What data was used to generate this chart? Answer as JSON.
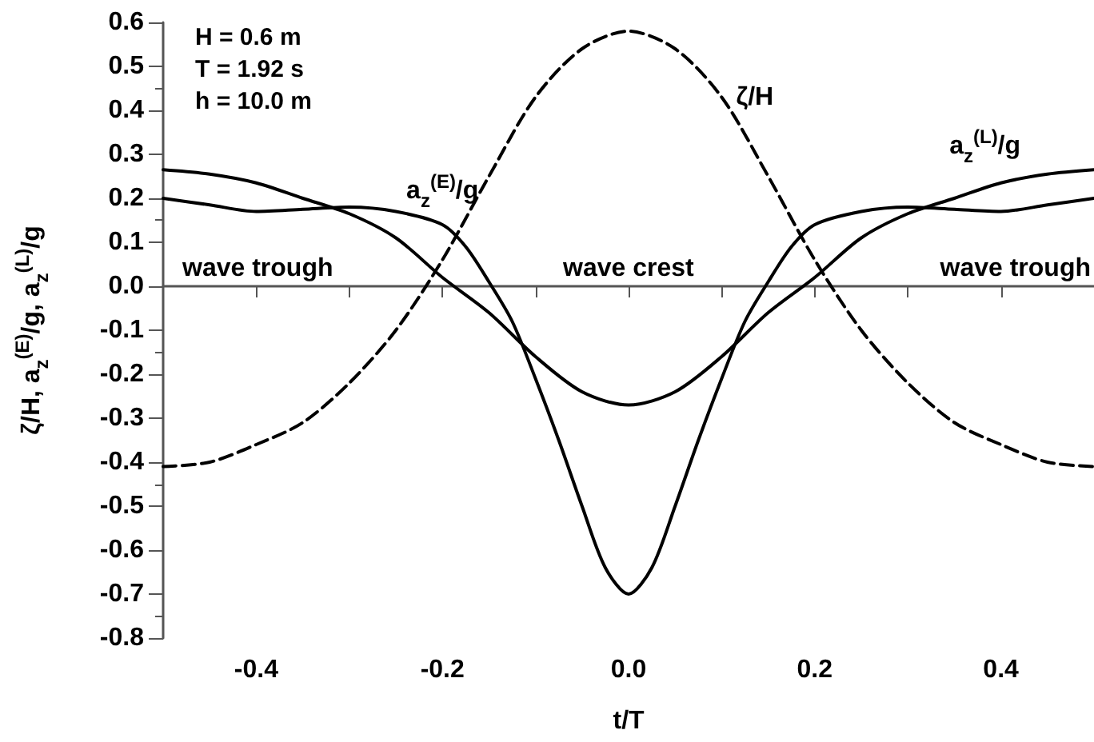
{
  "chart_data": {
    "type": "line",
    "xlabel": "t/T",
    "ylabel": "ζ/H, a$_{z}$$^{(E)}$/g, a$_{z}$$^{(L)}$/g",
    "xlim": [
      -0.5,
      0.5
    ],
    "xticks": [
      -0.4,
      {
        "value": -0.3,
        "label": null
      },
      -0.2,
      {
        "value": -0.1,
        "label": null
      },
      {
        "value": 0,
        "label": "0.0"
      },
      {
        "value": 0.1,
        "label": null
      },
      0.2,
      {
        "value": 0.3,
        "label": null
      },
      0.4
    ],
    "ylim": [
      -0.8,
      0.6
    ],
    "yticks": [
      -0.8,
      -0.7,
      -0.6,
      -0.5,
      -0.4,
      -0.3,
      -0.2,
      -0.1,
      {
        "value": 0,
        "label": "0.0"
      },
      0.1,
      0.2,
      0.3,
      0.4,
      0.5,
      0.6
    ],
    "marker": "none",
    "annotations": [
      "H = 0.6 m",
      "T = 1.92 s",
      "h = 10.0 m",
      "wave trough",
      "wave crest",
      "wave trough"
    ],
    "series": [
      {
        "name": "ζ/H",
        "color": "#000000",
        "line_style": "dashed",
        "x": [
          -0.5,
          -0.45,
          -0.4,
          -0.35,
          -0.3,
          -0.25,
          -0.2,
          -0.15,
          -0.1,
          -0.05,
          0,
          0.05,
          0.1,
          0.15,
          0.2,
          0.25,
          0.3,
          0.35,
          0.4,
          0.45,
          0.5
        ],
        "values": [
          -0.41,
          -0.4,
          -0.36,
          -0.31,
          -0.22,
          -0.1,
          0.06,
          0.25,
          0.43,
          0.54,
          0.58,
          0.54,
          0.43,
          0.25,
          0.06,
          -0.1,
          -0.22,
          -0.31,
          -0.36,
          -0.4,
          -0.41
        ]
      },
      {
        "name": "a$_{z}$$^{(E)}$/g",
        "color": "#000000",
        "line_style": "solid",
        "x": [
          -0.5,
          -0.45,
          -0.4,
          -0.35,
          -0.3,
          -0.25,
          -0.2,
          -0.175,
          -0.15,
          -0.125,
          -0.1,
          -0.075,
          -0.05,
          -0.025,
          0,
          0.025,
          0.05,
          0.075,
          0.1,
          0.125,
          0.15,
          0.175,
          0.2,
          0.25,
          0.3,
          0.35,
          0.4,
          0.45,
          0.5
        ],
        "values": [
          0.2,
          0.185,
          0.17,
          0.175,
          0.18,
          0.17,
          0.14,
          0.09,
          0.01,
          -0.08,
          -0.21,
          -0.35,
          -0.5,
          -0.64,
          -0.7,
          -0.64,
          -0.5,
          -0.35,
          -0.21,
          -0.08,
          0.01,
          0.09,
          0.14,
          0.17,
          0.18,
          0.175,
          0.17,
          0.185,
          0.2
        ]
      },
      {
        "name": "a$_{z}$$^{(L)}$/g",
        "color": "#000000",
        "line_style": "solid",
        "x": [
          -0.5,
          -0.45,
          -0.4,
          -0.35,
          -0.3,
          -0.25,
          -0.2,
          -0.15,
          -0.1,
          -0.05,
          0,
          0.05,
          0.1,
          0.15,
          0.2,
          0.25,
          0.3,
          0.35,
          0.4,
          0.45,
          0.5
        ],
        "values": [
          0.265,
          0.255,
          0.235,
          0.2,
          0.165,
          0.11,
          0.02,
          -0.06,
          -0.16,
          -0.24,
          -0.27,
          -0.24,
          -0.16,
          -0.06,
          0.02,
          0.11,
          0.165,
          0.2,
          0.235,
          0.255,
          0.265
        ]
      }
    ]
  }
}
